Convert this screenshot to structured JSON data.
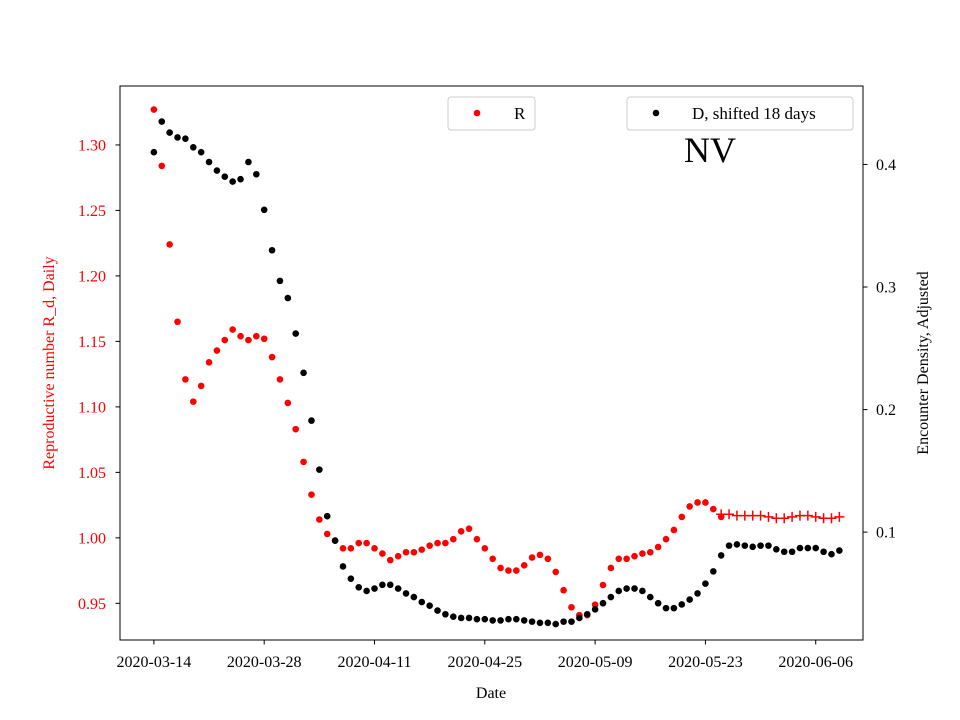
{
  "chart_data": {
    "type": "scatter",
    "region_label": "NV",
    "xlabel": "Date",
    "ylabel_left": "Reproductive number R_d, Daily",
    "ylabel_right": "Encounter Density, Adjusted",
    "x_ticks": [
      "2020-03-14",
      "2020-03-28",
      "2020-04-11",
      "2020-04-25",
      "2020-05-09",
      "2020-05-23",
      "2020-06-06"
    ],
    "x_start_date": "2020-03-14",
    "x_range_days": [
      -4.3,
      90.0
    ],
    "ylim_left": [
      0.922,
      1.345
    ],
    "yticks_left": [
      "0.95",
      "1.00",
      "1.05",
      "1.10",
      "1.15",
      "1.20",
      "1.25",
      "1.30"
    ],
    "ylim_right": [
      0.012,
      0.464
    ],
    "yticks_right": [
      "0.1",
      "0.2",
      "0.3",
      "0.4"
    ],
    "colors": {
      "R": "#ff0000",
      "D": "#000000",
      "left_axis": "#ff0000"
    },
    "legend": [
      {
        "label": "R",
        "color": "#ff0000",
        "location": "top-center"
      },
      {
        "label": "D, shifted 18 days",
        "color": "#000000",
        "location": "top-right"
      }
    ],
    "series": [
      {
        "name": "R",
        "axis": "left",
        "marker": "dot",
        "start_day": 0,
        "values": [
          1.327,
          1.284,
          1.224,
          1.165,
          1.121,
          1.104,
          1.116,
          1.134,
          1.143,
          1.151,
          1.159,
          1.154,
          1.151,
          1.154,
          1.152,
          1.138,
          1.121,
          1.103,
          1.083,
          1.058,
          1.033,
          1.014,
          1.003,
          0.998,
          0.992,
          0.992,
          0.996,
          0.996,
          0.992,
          0.988,
          0.983,
          0.986,
          0.989,
          0.989,
          0.991,
          0.994,
          0.996,
          0.996,
          0.999,
          1.005,
          1.007,
          0.999,
          0.992,
          0.984,
          0.977,
          0.975,
          0.975,
          0.979,
          0.985,
          0.987,
          0.984,
          0.974,
          0.96,
          0.947,
          0.941,
          0.941,
          0.949,
          0.964,
          0.977,
          0.984,
          0.984,
          0.986,
          0.988,
          0.989,
          0.993,
          0.999,
          1.006,
          1.016,
          1.024,
          1.027,
          1.027,
          1.022,
          1.016
        ]
      },
      {
        "name": "R",
        "axis": "left",
        "marker": "plus",
        "start_day": 72,
        "values": [
          1.018,
          1.018,
          1.017,
          1.017,
          1.017,
          1.017,
          1.016,
          1.015,
          1.015,
          1.016,
          1.017,
          1.017,
          1.016,
          1.015,
          1.015,
          1.016
        ]
      },
      {
        "name": "D, shifted 18 days",
        "axis": "right",
        "marker": "dot",
        "start_day": 0,
        "values": [
          0.41,
          0.435,
          0.426,
          0.422,
          0.421,
          0.414,
          0.41,
          0.402,
          0.395,
          0.39,
          0.386,
          0.388,
          0.402,
          0.392,
          0.363,
          0.33,
          0.305,
          0.291,
          0.262,
          0.23,
          0.191,
          0.151,
          0.113,
          0.093,
          0.072,
          0.062,
          0.055,
          0.052,
          0.054,
          0.057,
          0.057,
          0.054,
          0.05,
          0.047,
          0.043,
          0.04,
          0.036,
          0.033,
          0.031,
          0.03,
          0.03,
          0.029,
          0.029,
          0.028,
          0.028,
          0.029,
          0.029,
          0.028,
          0.027,
          0.026,
          0.026,
          0.025,
          0.027,
          0.027,
          0.03,
          0.033,
          0.037,
          0.042,
          0.047,
          0.052,
          0.054,
          0.054,
          0.052,
          0.047,
          0.042,
          0.038,
          0.038,
          0.041,
          0.045,
          0.05,
          0.058,
          0.068,
          0.081,
          0.089,
          0.09,
          0.089,
          0.088,
          0.089,
          0.089,
          0.086,
          0.084,
          0.084,
          0.087,
          0.087,
          0.087,
          0.084,
          0.082,
          0.085
        ]
      }
    ]
  }
}
